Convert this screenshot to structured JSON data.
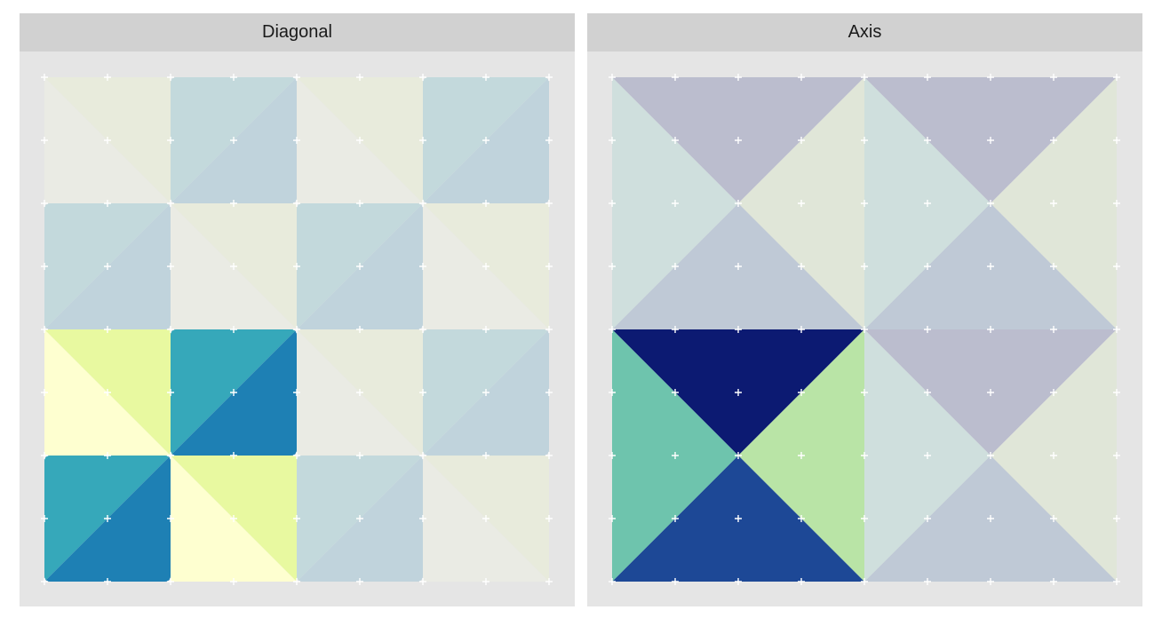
{
  "chart_data": [
    {
      "type": "heatmap",
      "title": "Diagonal",
      "grid": true,
      "cells": [
        {
          "row": 1,
          "col": 1,
          "upper": "#e8ebdc",
          "lower": "#eaebe4",
          "split": "diag-down",
          "rounded": false
        },
        {
          "row": 1,
          "col": 2,
          "upper": "#c3d9dc",
          "lower": "#c0d3dc",
          "split": "diag-up",
          "rounded": true
        },
        {
          "row": 1,
          "col": 3,
          "upper": "#e8ebdc",
          "lower": "#eaebe4",
          "split": "diag-down",
          "rounded": false
        },
        {
          "row": 1,
          "col": 4,
          "upper": "#c3d9dc",
          "lower": "#c0d3dc",
          "split": "diag-up",
          "rounded": true
        },
        {
          "row": 2,
          "col": 1,
          "upper": "#c3d9dc",
          "lower": "#c0d3dc",
          "split": "diag-up",
          "rounded": true
        },
        {
          "row": 2,
          "col": 2,
          "upper": "#e8ebdc",
          "lower": "#eaebe4",
          "split": "diag-down",
          "rounded": false
        },
        {
          "row": 2,
          "col": 3,
          "upper": "#c3d9dc",
          "lower": "#c0d3dc",
          "split": "diag-up",
          "rounded": true
        },
        {
          "row": 2,
          "col": 4,
          "upper": "#e8ebdc",
          "lower": "#eaebe4",
          "split": "diag-down",
          "rounded": false
        },
        {
          "row": 3,
          "col": 1,
          "upper": "#e8f9a0",
          "lower": "#feffd0",
          "split": "diag-down",
          "rounded": false
        },
        {
          "row": 3,
          "col": 2,
          "upper": "#36a8ba",
          "lower": "#1e80b4",
          "split": "diag-up",
          "rounded": true
        },
        {
          "row": 3,
          "col": 3,
          "upper": "#e8ebdc",
          "lower": "#eaebe4",
          "split": "diag-down",
          "rounded": false
        },
        {
          "row": 3,
          "col": 4,
          "upper": "#c3d9dc",
          "lower": "#c0d3dc",
          "split": "diag-up",
          "rounded": true
        },
        {
          "row": 4,
          "col": 1,
          "upper": "#36a8ba",
          "lower": "#1e80b4",
          "split": "diag-up",
          "rounded": true
        },
        {
          "row": 4,
          "col": 2,
          "upper": "#e8f9a0",
          "lower": "#feffd0",
          "split": "diag-down",
          "rounded": false
        },
        {
          "row": 4,
          "col": 3,
          "upper": "#c3d9dc",
          "lower": "#c0d3dc",
          "split": "diag-up",
          "rounded": true
        },
        {
          "row": 4,
          "col": 4,
          "upper": "#e8ebdc",
          "lower": "#eaebe4",
          "split": "diag-down",
          "rounded": false
        }
      ]
    },
    {
      "type": "heatmap",
      "title": "Axis",
      "grid": true,
      "cells": [
        {
          "row": 1,
          "col": 1,
          "top": "#bbbdce",
          "right": "#e0e6d8",
          "bottom": "#bfc9d6",
          "left": "#cfdfdd"
        },
        {
          "row": 1,
          "col": 2,
          "top": "#bbbdce",
          "right": "#e0e6d8",
          "bottom": "#bfc9d6",
          "left": "#cfdfdd"
        },
        {
          "row": 2,
          "col": 1,
          "top": "#0c1a72",
          "right": "#b9e4a6",
          "bottom": "#1d4896",
          "left": "#6ec4ad"
        },
        {
          "row": 2,
          "col": 2,
          "top": "#bbbdce",
          "right": "#e0e6d8",
          "bottom": "#bfc9d6",
          "left": "#cfdfdd"
        }
      ]
    }
  ]
}
